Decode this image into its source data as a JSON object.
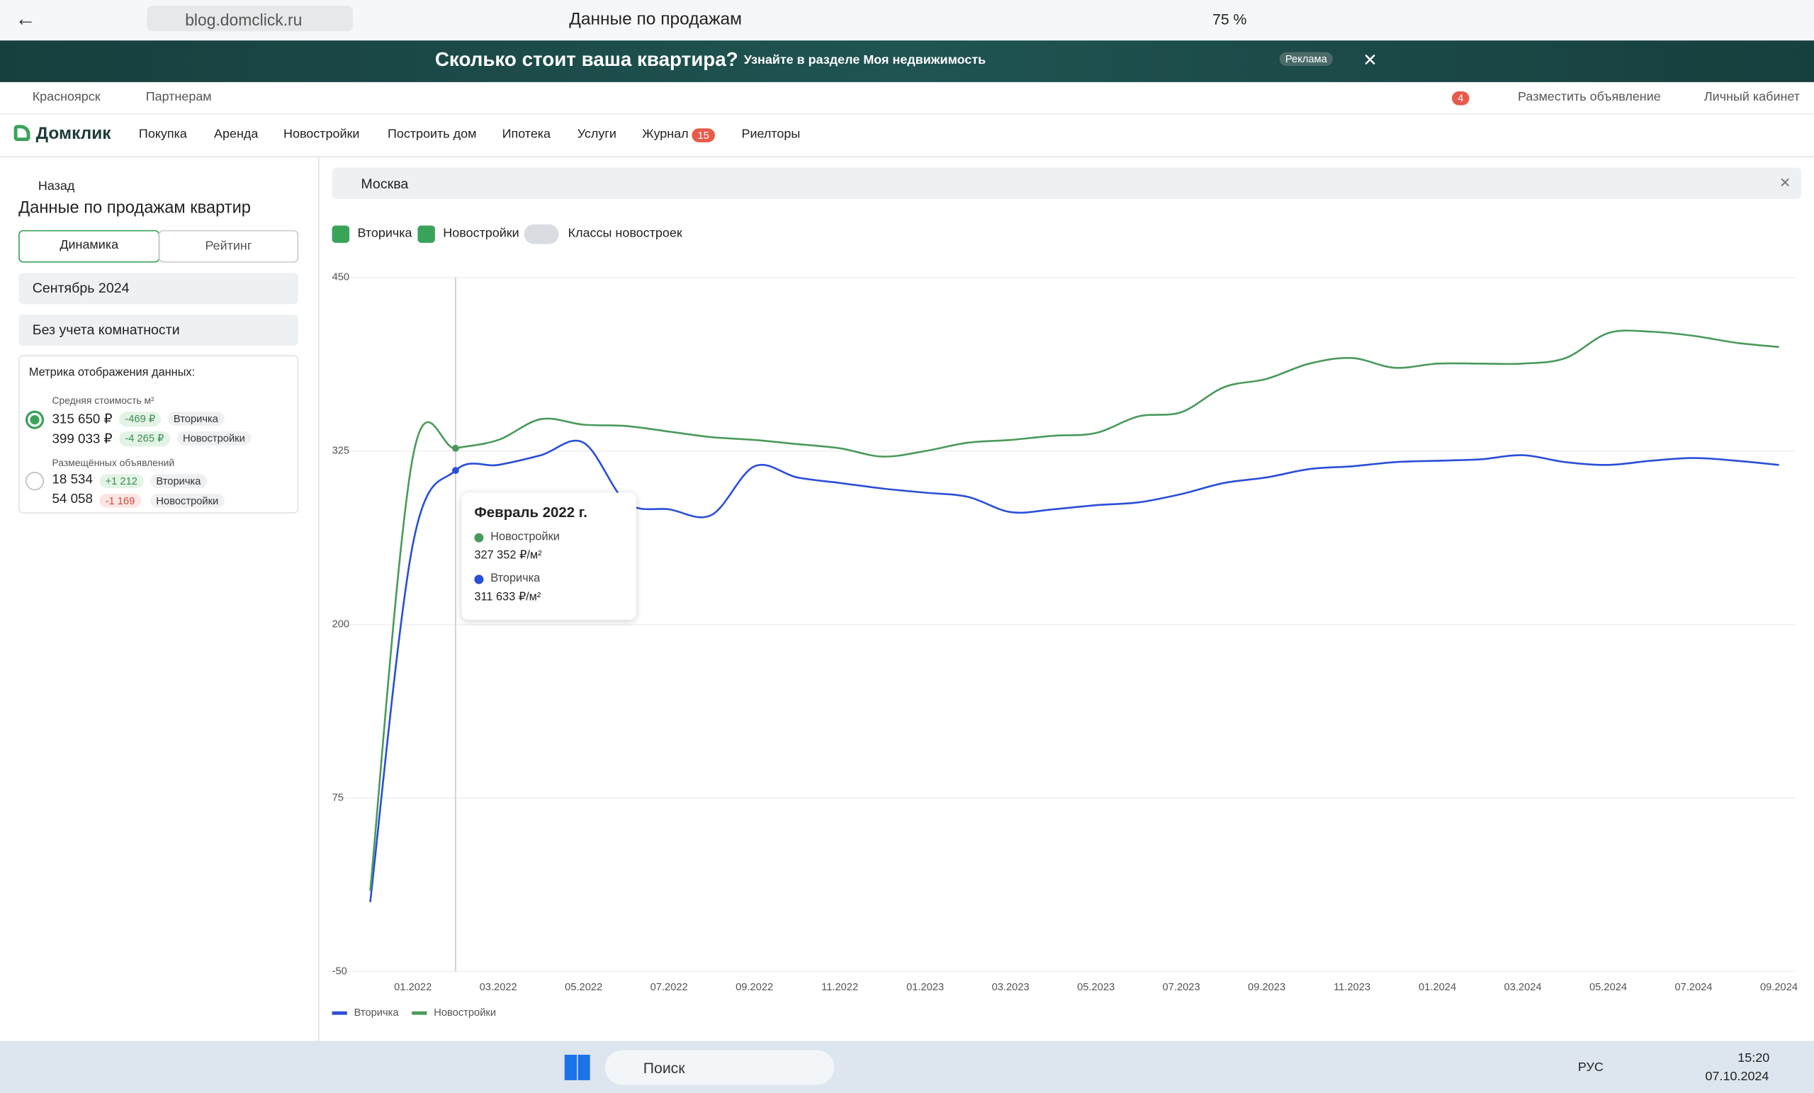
{
  "browser": {
    "url": "blog.domclick.ru",
    "tab_title": "Данные по продажам",
    "zoom": "75 %"
  },
  "banner": {
    "title": "Сколько стоит ваша квартира?",
    "subtitle": "Узнайте в разделе Моя недвижимость",
    "ad": "Реклама"
  },
  "topbar": {
    "city": "Красноярск",
    "partners": "Партнерам",
    "notifications": "4",
    "post": "Разместить объявление",
    "cabinet": "Личный кабинет"
  },
  "nav": {
    "logo": "Домклик",
    "items": [
      "Покупка",
      "Аренда",
      "Новостройки",
      "Построить дом",
      "Ипотека",
      "Услуги",
      "Журнал",
      "Риелторы"
    ],
    "journal_badge": "15"
  },
  "sidebar": {
    "back": "Назад",
    "title": "Данные по продажам квартир",
    "tabs": [
      "Динамика",
      "Рейтинг"
    ],
    "period": "Сентябрь 2024",
    "rooms": "Без учета комнатности",
    "metric_title": "Метрика отображения данных:",
    "metrics": [
      {
        "label": "Средняя стоимость м²",
        "rows": [
          {
            "value": "315 650 ₽",
            "delta": "-469 ₽",
            "tag": "Вторичка"
          },
          {
            "value": "399 033 ₽",
            "delta": "-4 265 ₽",
            "tag": "Новостройки"
          }
        ]
      },
      {
        "label": "Размещённых объявлений",
        "rows": [
          {
            "value": "18 534",
            "delta": "+1 212",
            "tag": "Вторичка"
          },
          {
            "value": "54 058",
            "delta": "-1 169",
            "tag": "Новостройки"
          }
        ]
      }
    ]
  },
  "search": "Москва",
  "filters": [
    "Вторичка",
    "Новостройки",
    "Классы новостроек"
  ],
  "chart_data": {
    "type": "line",
    "categories": [
      null,
      "01.2022",
      null,
      "03.2022",
      null,
      "05.2022",
      null,
      "07.2022",
      null,
      "09.2022",
      null,
      "11.2022",
      null,
      "01.2023",
      null,
      "03.2023",
      null,
      "05.2023",
      null,
      "07.2023",
      null,
      "09.2023",
      null,
      "11.2023",
      null,
      "01.2024",
      null,
      "03.2024",
      null,
      "05.2024",
      null,
      "07.2024",
      null,
      "09.2024"
    ],
    "series": [
      {
        "name": "Вторичка",
        "color": "#2a4fd7",
        "values": [
          0,
          258,
          311,
          315,
          322,
          331,
          288,
          283,
          279,
          314,
          306,
          302,
          298,
          295,
          292,
          281,
          283,
          286,
          288,
          294,
          302,
          306,
          312,
          314,
          317,
          318,
          319,
          322,
          317,
          315,
          318,
          320,
          318,
          315
        ]
      },
      {
        "name": "Новостройки",
        "color": "#4a9a5c",
        "values": [
          8,
          321,
          327,
          333,
          348,
          344,
          343,
          339,
          335,
          333,
          330,
          327,
          321,
          325,
          331,
          333,
          336,
          338,
          350,
          353,
          371,
          377,
          388,
          392,
          385,
          388,
          388,
          388,
          392,
          410,
          411,
          408,
          403,
          400
        ]
      }
    ],
    "ylim": [
      -50,
      450
    ],
    "yticks": [
      -50,
      75,
      200,
      325,
      450
    ],
    "grid": true
  },
  "tooltip": {
    "title": "Февраль 2022 г.",
    "items": [
      {
        "name": "Новостройки",
        "value": "327 352 ₽/м²"
      },
      {
        "name": "Вторичка",
        "value": "311 633 ₽/м²"
      }
    ]
  },
  "taskbar": {
    "search": "Поиск",
    "lang": "РУС",
    "time": "15:20",
    "date": "07.10.2024"
  }
}
